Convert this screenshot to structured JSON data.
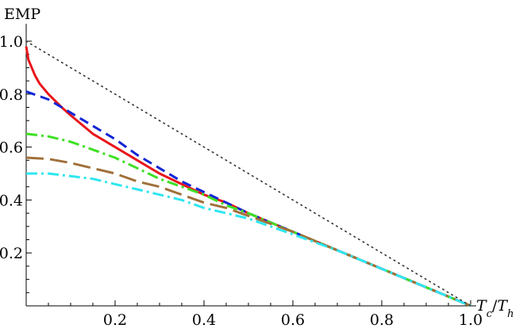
{
  "chart_data": {
    "type": "line",
    "title": "",
    "xlabel": "T_c/T_h",
    "xlabel_parts": {
      "main": "T",
      "sub1": "c",
      "slash": "/",
      "main2": "T",
      "sub2": "h"
    },
    "ylabel": "EMP",
    "xlim": [
      0,
      1.0
    ],
    "ylim": [
      0,
      1.0
    ],
    "xticks": [
      0.2,
      0.4,
      0.6,
      0.8,
      1.0
    ],
    "yticks": [
      0.2,
      0.4,
      0.6,
      0.8,
      1.0
    ],
    "xtick_labels": [
      "0.2",
      "0.4",
      "0.6",
      "0.8",
      "1.0"
    ],
    "ytick_labels": [
      "0.2",
      "0.4",
      "0.6",
      "0.8",
      "1.0"
    ],
    "grid": false,
    "legend": "none",
    "series": [
      {
        "color": "#e8161b",
        "style": "solid",
        "x": [
          0.0,
          0.005,
          0.01,
          0.02,
          0.03,
          0.05,
          0.08,
          0.1,
          0.15,
          0.2,
          0.25,
          0.3,
          0.35,
          0.4,
          0.45,
          0.5,
          0.6,
          0.7,
          0.8,
          0.9,
          0.95,
          1.0
        ],
        "y": [
          0.98,
          0.93,
          0.91,
          0.87,
          0.84,
          0.8,
          0.75,
          0.72,
          0.65,
          0.6,
          0.55,
          0.5,
          0.46,
          0.42,
          0.39,
          0.35,
          0.28,
          0.21,
          0.14,
          0.07,
          0.035,
          0.0
        ]
      },
      {
        "color": "#1226d6",
        "style": "dashed",
        "x": [
          0.0,
          0.05,
          0.1,
          0.15,
          0.2,
          0.25,
          0.3,
          0.35,
          0.4,
          0.45,
          0.5,
          0.6,
          0.7,
          0.8,
          0.9,
          1.0
        ],
        "y": [
          0.81,
          0.78,
          0.73,
          0.68,
          0.63,
          0.57,
          0.52,
          0.47,
          0.43,
          0.39,
          0.35,
          0.28,
          0.21,
          0.14,
          0.07,
          0.0
        ]
      },
      {
        "color": "#3ee023",
        "style": "dashdot",
        "x": [
          0.0,
          0.05,
          0.1,
          0.15,
          0.2,
          0.25,
          0.3,
          0.35,
          0.4,
          0.45,
          0.5,
          0.6,
          0.7,
          0.8,
          0.9,
          1.0
        ],
        "y": [
          0.65,
          0.64,
          0.62,
          0.59,
          0.56,
          0.52,
          0.48,
          0.45,
          0.42,
          0.38,
          0.35,
          0.28,
          0.21,
          0.14,
          0.07,
          0.0
        ]
      },
      {
        "color": "#a0703a",
        "style": "longdash",
        "x": [
          0.0,
          0.05,
          0.1,
          0.15,
          0.2,
          0.25,
          0.3,
          0.35,
          0.4,
          0.45,
          0.5,
          0.6,
          0.7,
          0.8,
          0.9,
          1.0
        ],
        "y": [
          0.56,
          0.555,
          0.54,
          0.52,
          0.5,
          0.47,
          0.45,
          0.42,
          0.39,
          0.37,
          0.34,
          0.28,
          0.21,
          0.14,
          0.07,
          0.0
        ]
      },
      {
        "color": "#2ee6f0",
        "style": "dashdot",
        "x": [
          0.0,
          0.05,
          0.1,
          0.15,
          0.2,
          0.25,
          0.3,
          0.35,
          0.4,
          0.45,
          0.5,
          0.6,
          0.7,
          0.8,
          0.9,
          1.0
        ],
        "y": [
          0.5,
          0.5,
          0.49,
          0.48,
          0.46,
          0.44,
          0.42,
          0.4,
          0.37,
          0.35,
          0.33,
          0.27,
          0.21,
          0.14,
          0.07,
          0.0
        ]
      },
      {
        "color": "#333333",
        "style": "dotted",
        "x": [
          0.0,
          1.0
        ],
        "y": [
          1.0,
          0.0
        ]
      }
    ]
  }
}
